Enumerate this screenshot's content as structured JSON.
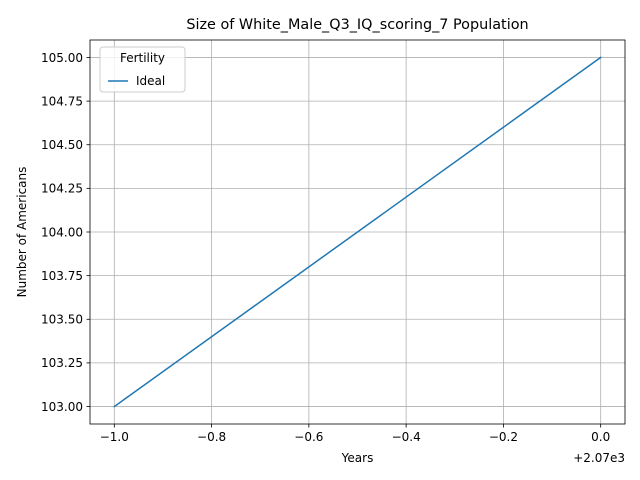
{
  "chart_data": {
    "type": "line",
    "title": "Size of White_Male_Q3_IQ_scoring_7 Population",
    "xlabel": "Years",
    "ylabel": "Number of Americans",
    "x_offset_label": "+2.07e3",
    "x": [
      2069,
      2070
    ],
    "series": [
      {
        "name": "Ideal",
        "values": [
          103,
          105
        ],
        "color": "#1f77b4"
      }
    ],
    "xlim": [
      2068.95,
      2070.05
    ],
    "ylim": [
      102.9,
      105.1
    ],
    "x_ticks": [
      2069,
      2069.2,
      2069.4,
      2069.6,
      2069.8,
      2070
    ],
    "x_tick_labels": [
      "−1.0",
      "−0.8",
      "−0.6",
      "−0.4",
      "−0.2",
      "0.0"
    ],
    "y_ticks": [
      103,
      103.25,
      103.5,
      103.75,
      104,
      104.25,
      104.5,
      104.75,
      105
    ],
    "y_tick_labels": [
      "103.00",
      "103.25",
      "103.50",
      "103.75",
      "104.00",
      "104.25",
      "104.50",
      "104.75",
      "105.00"
    ],
    "grid": true,
    "legend": {
      "title": "Fertility",
      "placement": "top-left"
    }
  }
}
